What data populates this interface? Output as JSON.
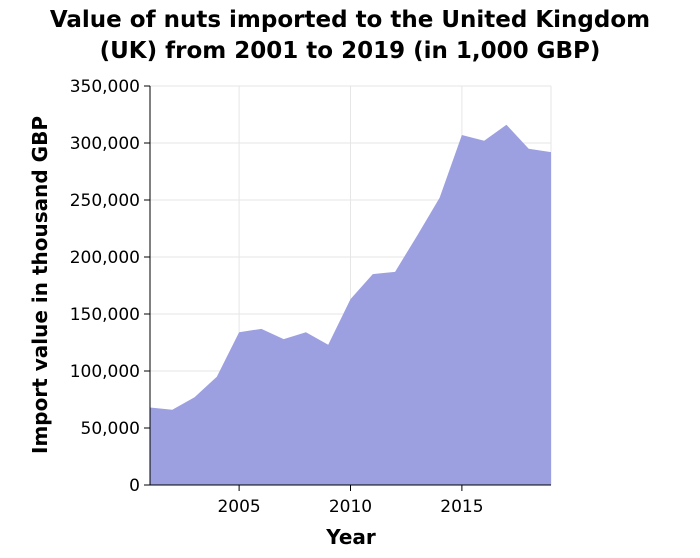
{
  "chart_data": {
    "type": "area",
    "title_lines": [
      "Value of nuts imported to the United Kingdom",
      "(UK) from 2001 to 2019 (in 1,000 GBP)"
    ],
    "xlabel": "Year",
    "ylabel": "Import value in thousand GBP",
    "xlim": [
      2001,
      2019
    ],
    "ylim": [
      0,
      350000
    ],
    "x_ticks": [
      2005,
      2010,
      2015
    ],
    "x_tick_labels": [
      "2005",
      "2010",
      "2015"
    ],
    "y_ticks": [
      0,
      50000,
      100000,
      150000,
      200000,
      250000,
      300000,
      350000
    ],
    "y_tick_labels": [
      "0",
      "50,000",
      "100,000",
      "150,000",
      "200,000",
      "250,000",
      "300,000",
      "350,000"
    ],
    "grid": true,
    "fill_color": "#9da0e0",
    "x": [
      2001,
      2002,
      2003,
      2004,
      2005,
      2006,
      2007,
      2008,
      2009,
      2010,
      2011,
      2012,
      2013,
      2014,
      2015,
      2016,
      2017,
      2018,
      2019
    ],
    "values": [
      68000,
      66000,
      77000,
      95000,
      134000,
      137000,
      128000,
      134000,
      123000,
      163000,
      185000,
      187000,
      219000,
      252000,
      307000,
      302000,
      316000,
      295000,
      292000
    ]
  }
}
